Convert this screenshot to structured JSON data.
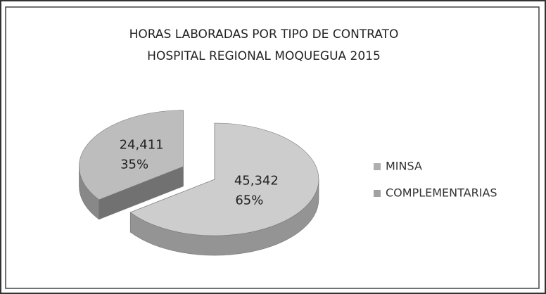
{
  "chart_data": {
    "type": "pie",
    "title": [
      "HORAS LABORADAS POR TIPO DE CONTRATO",
      "HOSPITAL REGIONAL MOQUEGUA 2015"
    ],
    "categories": [
      "MINSA",
      "COMPLEMENTARIAS"
    ],
    "values": [
      45342,
      24411
    ],
    "value_labels": [
      "45,342",
      "24,411"
    ],
    "percentages": [
      65,
      35
    ],
    "percentage_labels": [
      "65%",
      "35%"
    ],
    "colors": [
      "#cdcdcd",
      "#bdbdbd"
    ],
    "legend": "right"
  }
}
